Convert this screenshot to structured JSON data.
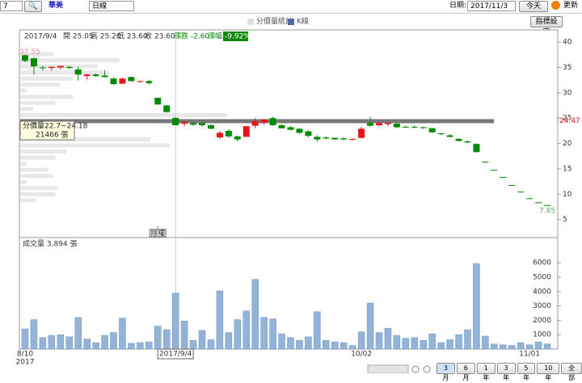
{
  "toolbar": {
    "stock_code": "7",
    "stock_name": "華美",
    "period": "日線",
    "date_label": "日期:",
    "date": "2017/11/3",
    "today": "今天",
    "refresh": "更新"
  },
  "legend": [
    "分價量統計",
    "K線"
  ],
  "indicator_button": "指標設定",
  "range_buttons": [
    "3月",
    "6月",
    "1年",
    "3年",
    "5年",
    "10年",
    "全部"
  ],
  "chart_data": {
    "type": "candlestick",
    "header": [
      "開 25.05",
      "高 25.20",
      "低 23.60",
      "收 23.60"
    ],
    "change": "漲跌 -2.60",
    "change_pct_label": "漲幅",
    "change_pct": "-9.92%",
    "event_label": "除權",
    "tooltip": [
      "分價量22.7~24.18",
      "21466 張"
    ],
    "volume_header": "成交量 3,894 張",
    "year_label": "2017",
    "categories": [
      "8/10",
      null,
      null,
      null,
      null,
      null,
      null,
      null,
      null,
      null,
      null,
      null,
      null,
      null,
      null,
      null,
      null,
      "2017/9/4",
      null,
      null,
      null,
      null,
      null,
      null,
      null,
      null,
      null,
      null,
      null,
      null,
      null,
      null,
      null,
      null,
      null,
      null,
      null,
      null,
      "10/02",
      null,
      null,
      null,
      null,
      null,
      null,
      null,
      null,
      null,
      null,
      null,
      null,
      null,
      null,
      null,
      null,
      null,
      null,
      "11/01",
      null,
      null
    ],
    "open": [
      37.4,
      36.8,
      35.0,
      34.9,
      35.0,
      35.1,
      34.6,
      33.3,
      33.6,
      33.4,
      32.8,
      31.8,
      33.1,
      32.2,
      32.3,
      29.0,
      27.5,
      25.05,
      23.9,
      24.0,
      24.0,
      23.6,
      21.2,
      22.5,
      21.4,
      21.3,
      23.5,
      24.1,
      25.0,
      23.6,
      23.2,
      22.9,
      22.4,
      21.3,
      21.2,
      21.1,
      21.0,
      20.8,
      21.1,
      24.0,
      23.6,
      23.8,
      23.9,
      23.3,
      23.3,
      23.2,
      23.0,
      22.0,
      21.6,
      20.9,
      20.4,
      19.9,
      16.4,
      14.8,
      13.4,
      11.8,
      10.5,
      9.2,
      8.4,
      7.85
    ],
    "high": [
      37.55,
      37.0,
      35.3,
      35.2,
      35.3,
      35.3,
      35.1,
      33.7,
      33.8,
      34.4,
      33.0,
      33.0,
      33.2,
      32.4,
      32.5,
      29.0,
      27.6,
      25.2,
      24.4,
      24.2,
      24.2,
      23.8,
      22.5,
      22.8,
      21.6,
      23.5,
      25.0,
      24.8,
      25.3,
      23.8,
      23.4,
      23.0,
      22.6,
      21.6,
      21.4,
      21.2,
      21.2,
      21.0,
      23.3,
      25.2,
      24.2,
      24.3,
      24.0,
      23.5,
      23.5,
      23.3,
      23.1,
      22.1,
      21.8,
      21.0,
      20.6,
      20.0,
      16.4,
      14.8,
      13.4,
      11.8,
      10.5,
      9.2,
      8.4,
      7.85
    ],
    "low": [
      36.0,
      33.6,
      34.4,
      34.3,
      34.6,
      34.7,
      32.4,
      32.6,
      33.1,
      33.0,
      31.6,
      31.7,
      32.2,
      32.0,
      31.6,
      27.6,
      26.1,
      23.6,
      23.4,
      23.5,
      23.3,
      22.8,
      20.9,
      21.1,
      20.4,
      21.3,
      23.0,
      23.7,
      23.5,
      23.0,
      22.6,
      21.9,
      21.2,
      20.3,
      20.8,
      20.7,
      20.6,
      20.6,
      21.0,
      23.3,
      23.4,
      23.4,
      23.0,
      23.1,
      23.0,
      22.9,
      22.1,
      21.7,
      21.2,
      20.4,
      20.1,
      18.2,
      16.4,
      14.8,
      13.4,
      11.8,
      10.5,
      9.2,
      8.4,
      7.85
    ],
    "close": [
      36.3,
      35.2,
      34.9,
      35.1,
      35.3,
      34.9,
      33.6,
      33.6,
      33.3,
      33.1,
      31.7,
      32.8,
      32.3,
      32.3,
      31.9,
      27.7,
      26.2,
      23.6,
      24.2,
      23.7,
      23.6,
      22.9,
      22.1,
      21.4,
      20.8,
      23.4,
      24.4,
      24.7,
      23.6,
      23.0,
      22.7,
      22.1,
      21.5,
      20.8,
      21.0,
      20.8,
      20.8,
      20.9,
      22.9,
      23.5,
      24.0,
      24.0,
      23.2,
      23.2,
      23.2,
      23.1,
      22.2,
      21.9,
      21.3,
      20.5,
      20.2,
      18.3,
      16.4,
      14.8,
      13.4,
      11.8,
      10.5,
      9.2,
      8.4,
      7.85
    ],
    "up_color": "#e8141a",
    "down_color": "#008a00",
    "ylim": [
      1.6,
      42.4
    ],
    "yticks": [
      5,
      10,
      15,
      20,
      25,
      30,
      35,
      40
    ],
    "ref_line": 24.47,
    "price_volume": {
      "levels": [
        37.6,
        36.4,
        35.2,
        34.0,
        32.8,
        31.6,
        30.4,
        29.2,
        28.0,
        26.8,
        25.6,
        24.4,
        23.2,
        22.0,
        20.8,
        19.6,
        18.4,
        17.2,
        16.0,
        14.8,
        13.6,
        12.4,
        11.2,
        10.0,
        8.8
      ],
      "values": [
        1500,
        4500,
        3500,
        4000,
        2400,
        1800,
        300,
        2400,
        1600,
        600,
        9400,
        21466,
        2100,
        1100,
        5900,
        6800,
        2100,
        1600,
        300,
        1300,
        1500,
        300,
        1700,
        1600,
        700
      ],
      "color": "#e8e8e8",
      "highlight_color": "#777777"
    },
    "volume": {
      "values": [
        1400,
        2050,
        800,
        950,
        1000,
        850,
        2200,
        700,
        450,
        950,
        1150,
        2150,
        400,
        450,
        500,
        1600,
        1350,
        3894,
        1950,
        600,
        1300,
        650,
        4050,
        1150,
        2050,
        2650,
        4850,
        2200,
        2100,
        1050,
        800,
        600,
        850,
        2600,
        600,
        500,
        450,
        250,
        1200,
        3200,
        1150,
        1450,
        950,
        750,
        800,
        600,
        1050,
        450,
        650,
        1000,
        1350,
        5950,
        900,
        350,
        300,
        250,
        450,
        300,
        500,
        350
      ],
      "color": "#93b4d8"
    },
    "volume_ylim": [
      0,
      7700
    ],
    "volume_yticks": [
      1000,
      2000,
      3000,
      4000,
      5000,
      6000
    ]
  }
}
